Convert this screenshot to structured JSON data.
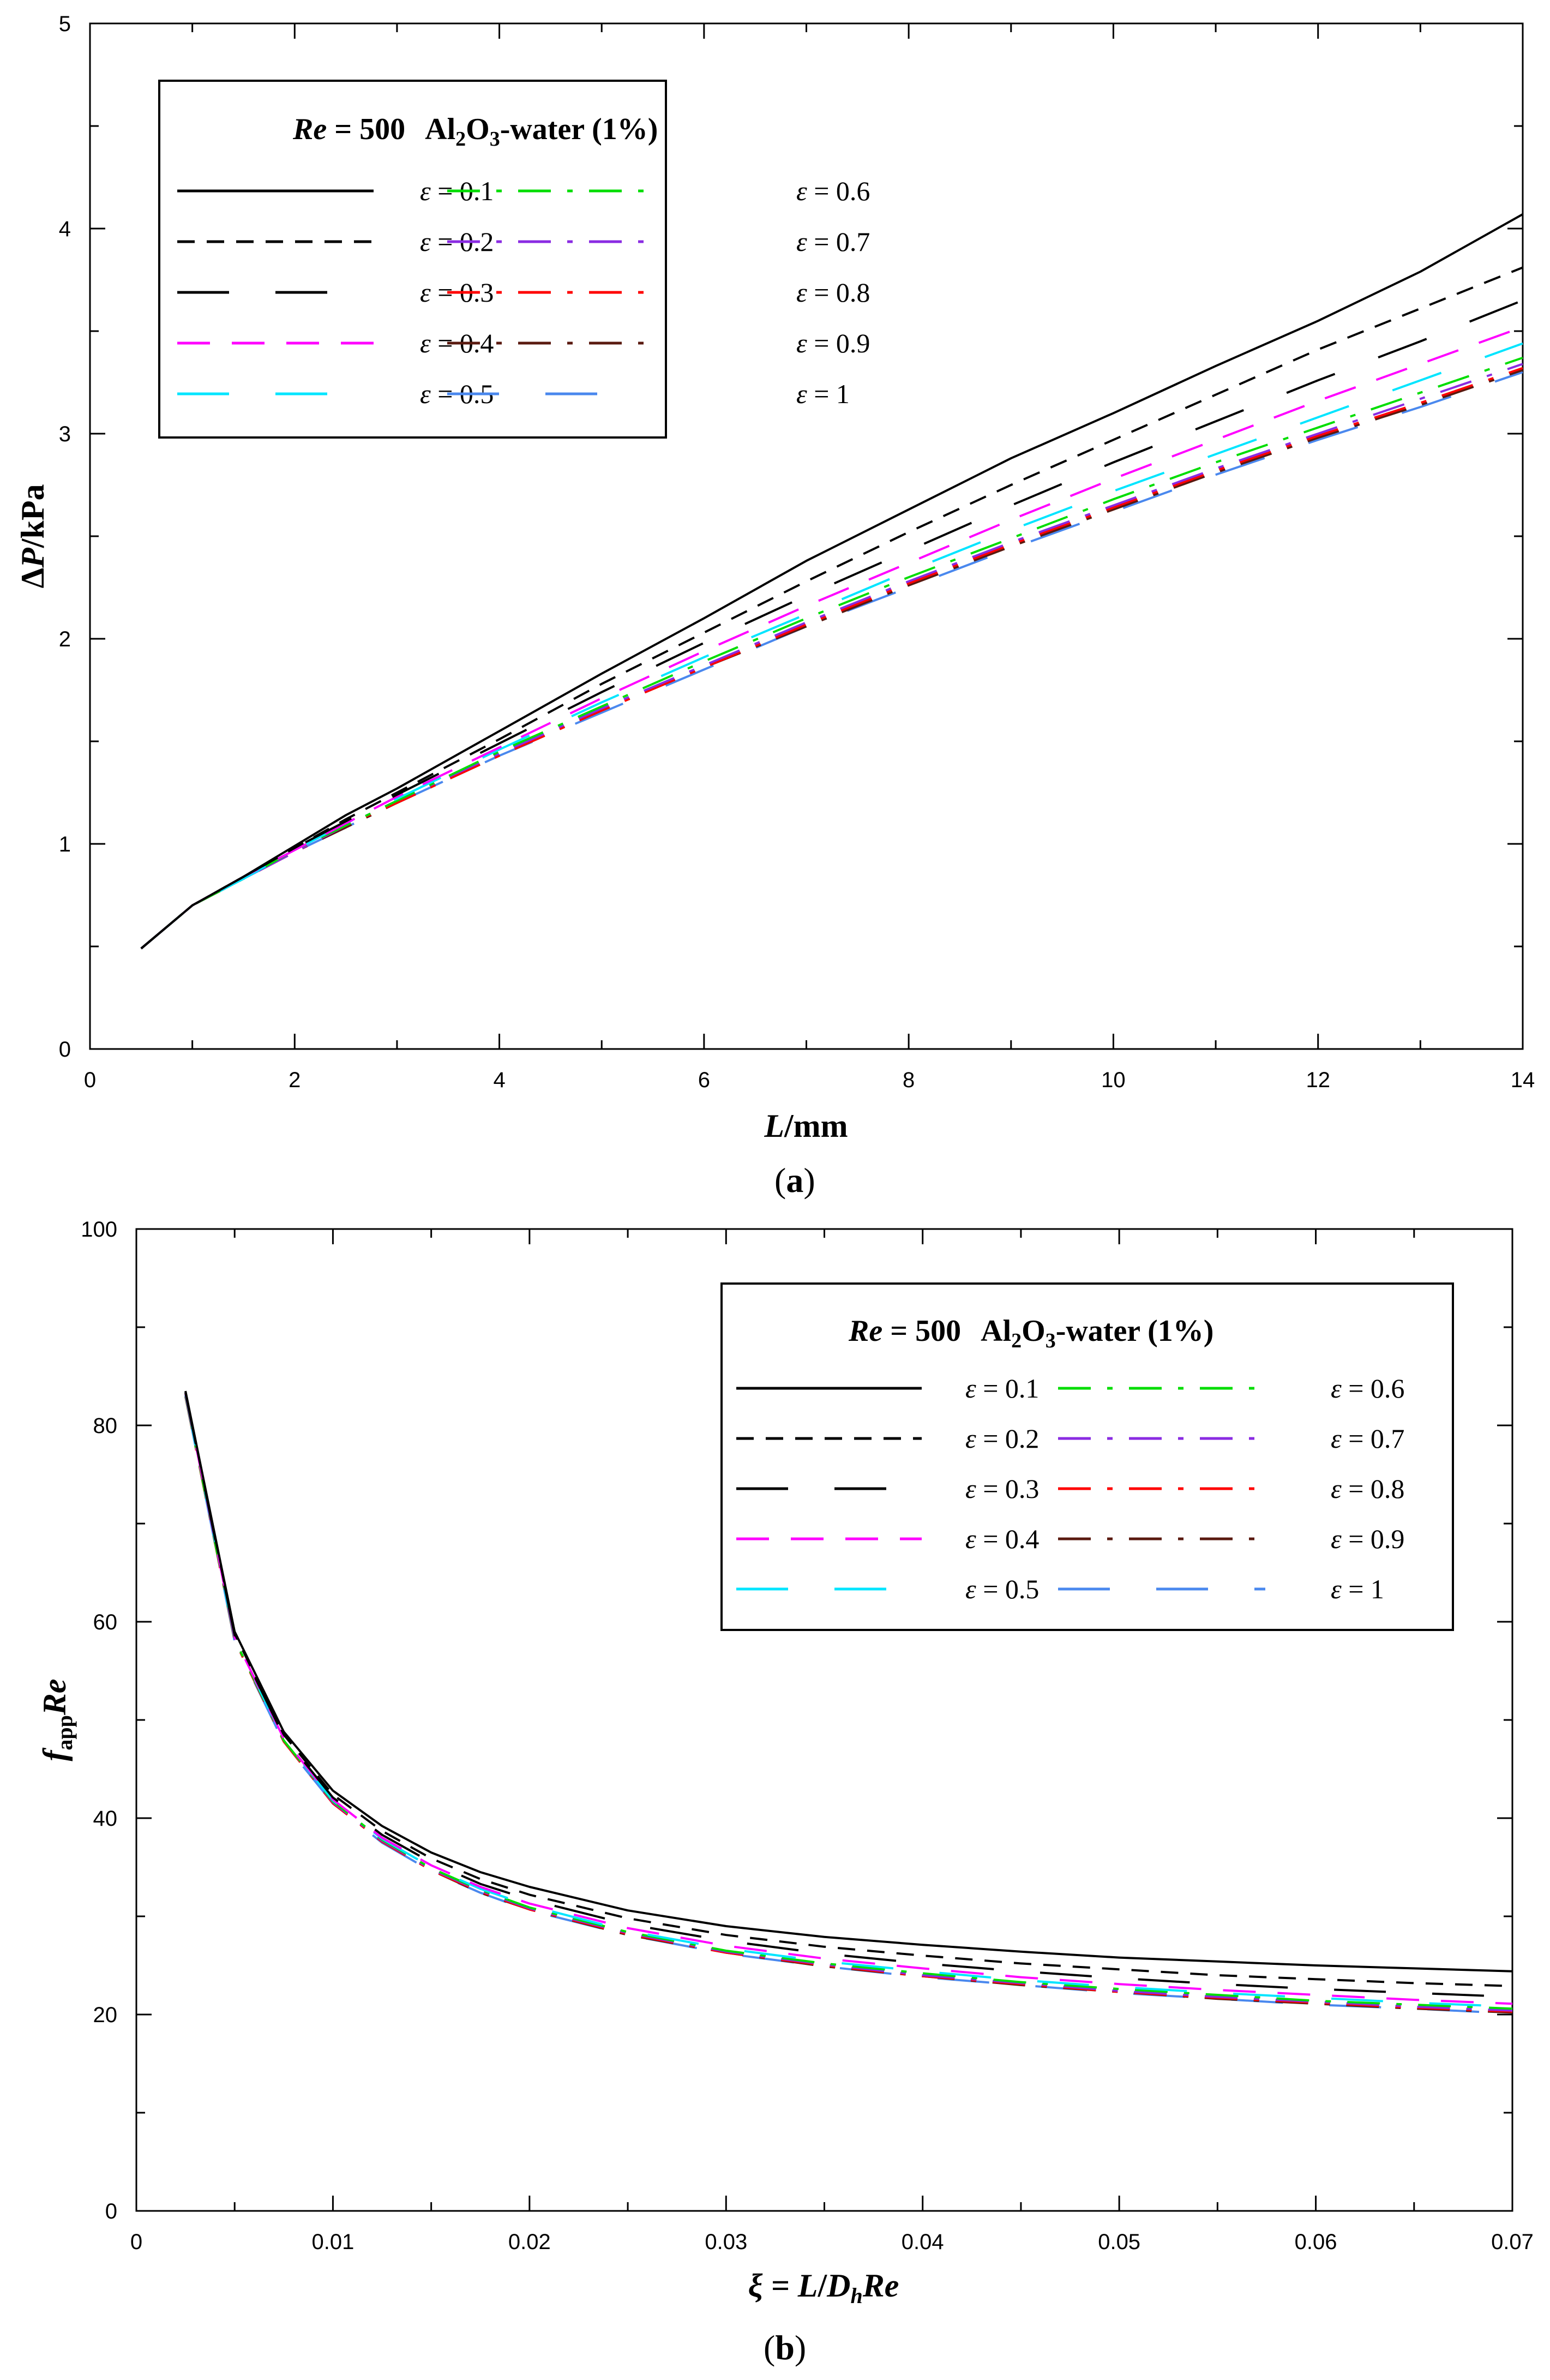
{
  "colors": {
    "e0.1": "#000000",
    "e0.2": "#000000",
    "e0.3": "#000000",
    "e0.4": "#ff00ff",
    "e0.5": "#00e5ff",
    "e0.6": "#00dd00",
    "e0.7": "#8a2be2",
    "e0.8": "#ff0000",
    "e0.9": "#5a1a10",
    "e1": "#4a88ee"
  },
  "chart_data": [
    {
      "panel": "(a)",
      "panel_letter": "a",
      "type": "line",
      "xlabel_var": "L",
      "xlabel_unit": "/mm",
      "ylabel_pre": "Δ",
      "ylabel_var": "P",
      "ylabel_unit": "/kPa",
      "xlim": [
        0,
        14
      ],
      "ylim": [
        0,
        5
      ],
      "xticks": [
        "0",
        "2",
        "4",
        "6",
        "8",
        "10",
        "12",
        "14"
      ],
      "yticks": [
        "0",
        "1",
        "2",
        "3",
        "4",
        "5"
      ],
      "legend": {
        "header_re": "Re",
        "header_eq": " = 500",
        "header_fluid_pre": "Al",
        "header_fluid_sub1": "2",
        "header_fluid_mid": "O",
        "header_fluid_sub2": "3",
        "header_fluid_post": "-water (1%)",
        "placement": "top-left"
      },
      "x": [
        0.5,
        1,
        1.5,
        2,
        2.5,
        3,
        4,
        5,
        6,
        7,
        8,
        9,
        10,
        11,
        12,
        13,
        14
      ],
      "series": [
        {
          "name": "ε = 0.1",
          "key": "e0.1",
          "dash": "solid",
          "values": [
            0.49,
            0.7,
            0.84,
            0.99,
            1.14,
            1.27,
            1.55,
            1.83,
            2.1,
            2.38,
            2.63,
            2.88,
            3.1,
            3.33,
            3.55,
            3.79,
            4.07
          ]
        },
        {
          "name": "ε = 0.2",
          "key": "e0.2",
          "dash": "short",
          "values": [
            0.49,
            0.7,
            0.84,
            0.98,
            1.12,
            1.25,
            1.51,
            1.78,
            2.03,
            2.28,
            2.52,
            2.75,
            2.97,
            3.19,
            3.41,
            3.61,
            3.81
          ]
        },
        {
          "name": "ε = 0.3",
          "key": "e0.3",
          "dash": "long-gap",
          "values": [
            0.49,
            0.7,
            0.84,
            0.98,
            1.11,
            1.24,
            1.49,
            1.74,
            1.98,
            2.21,
            2.43,
            2.65,
            2.86,
            3.06,
            3.26,
            3.45,
            3.65
          ]
        },
        {
          "name": "ε = 0.4",
          "key": "e0.4",
          "dash": "long",
          "values": [
            0.49,
            0.7,
            0.84,
            0.97,
            1.1,
            1.23,
            1.47,
            1.71,
            1.94,
            2.16,
            2.37,
            2.58,
            2.78,
            2.97,
            3.16,
            3.34,
            3.52
          ]
        },
        {
          "name": "ε = 0.5",
          "key": "e0.5",
          "dash": "long-gap",
          "values": [
            0.49,
            0.7,
            0.83,
            0.97,
            1.1,
            1.22,
            1.46,
            1.69,
            1.91,
            2.12,
            2.33,
            2.53,
            2.72,
            2.9,
            3.08,
            3.26,
            3.44
          ]
        },
        {
          "name": "ε = 0.6",
          "key": "e0.6",
          "dash": "dash-dot",
          "values": [
            0.49,
            0.7,
            0.83,
            0.97,
            1.09,
            1.21,
            1.45,
            1.67,
            1.89,
            2.1,
            2.3,
            2.49,
            2.68,
            2.86,
            3.03,
            3.2,
            3.37
          ]
        },
        {
          "name": "ε = 0.7",
          "key": "e0.7",
          "dash": "dash-dot",
          "values": [
            0.49,
            0.7,
            0.83,
            0.96,
            1.09,
            1.21,
            1.44,
            1.66,
            1.87,
            2.08,
            2.28,
            2.47,
            2.65,
            2.83,
            3.0,
            3.17,
            3.34
          ]
        },
        {
          "name": "ε = 0.8",
          "key": "e0.8",
          "dash": "dash-dot",
          "values": [
            0.49,
            0.7,
            0.83,
            0.96,
            1.09,
            1.2,
            1.43,
            1.65,
            1.86,
            2.07,
            2.27,
            2.46,
            2.64,
            2.82,
            2.99,
            3.15,
            3.32
          ]
        },
        {
          "name": "ε = 0.9",
          "key": "e0.9",
          "dash": "dash-dot",
          "values": [
            0.49,
            0.7,
            0.83,
            0.96,
            1.08,
            1.2,
            1.43,
            1.65,
            1.86,
            2.06,
            2.26,
            2.45,
            2.63,
            2.81,
            2.98,
            3.14,
            3.31
          ]
        },
        {
          "name": "ε = 1",
          "key": "e1",
          "dash": "long-gap",
          "values": [
            0.49,
            0.7,
            0.83,
            0.96,
            1.08,
            1.2,
            1.43,
            1.64,
            1.85,
            2.06,
            2.25,
            2.44,
            2.62,
            2.8,
            2.97,
            3.13,
            3.3
          ]
        }
      ]
    },
    {
      "panel": "(b)",
      "panel_letter": "b",
      "type": "line",
      "xlabel_pre": "ξ = ",
      "xlabel_l": "L",
      "xlabel_slash": "/",
      "xlabel_d": "D",
      "xlabel_h": "h",
      "xlabel_re": "Re",
      "ylabel_f": "f",
      "ylabel_sub": "app",
      "ylabel_re": "Re",
      "xlim": [
        0,
        0.07
      ],
      "ylim": [
        0,
        100
      ],
      "xticks": [
        "0",
        "0.01",
        "0.02",
        "0.03",
        "0.04",
        "0.05",
        "0.06",
        "0.07"
      ],
      "yticks": [
        "0",
        "20",
        "40",
        "60",
        "80",
        "100"
      ],
      "legend": {
        "header_re": "Re",
        "header_eq": " = 500",
        "header_fluid_pre": "Al",
        "header_fluid_sub1": "2",
        "header_fluid_mid": "O",
        "header_fluid_sub2": "3",
        "header_fluid_post": "-water (1%)",
        "placement": "top-right"
      },
      "x": [
        0.0025,
        0.005,
        0.0075,
        0.01,
        0.0125,
        0.015,
        0.0175,
        0.02,
        0.025,
        0.03,
        0.035,
        0.04,
        0.045,
        0.05,
        0.055,
        0.06,
        0.065,
        0.07
      ],
      "series": [
        {
          "name": "ε = 0.1",
          "key": "e0.1",
          "dash": "solid",
          "values": [
            83.5,
            59.0,
            48.8,
            42.8,
            39.2,
            36.5,
            34.5,
            33.0,
            30.6,
            29.0,
            27.9,
            27.1,
            26.4,
            25.8,
            25.4,
            25.0,
            24.7,
            24.4
          ]
        },
        {
          "name": "ε = 0.2",
          "key": "e0.2",
          "dash": "short",
          "values": [
            83.4,
            58.8,
            48.5,
            42.4,
            38.7,
            35.9,
            33.8,
            32.2,
            29.8,
            28.1,
            26.9,
            26.0,
            25.2,
            24.6,
            24.0,
            23.6,
            23.2,
            22.9
          ]
        },
        {
          "name": "ε = 0.3",
          "key": "e0.3",
          "dash": "long-gap",
          "values": [
            83.3,
            58.6,
            48.3,
            42.1,
            38.3,
            35.5,
            33.3,
            31.7,
            29.2,
            27.5,
            26.2,
            25.2,
            24.4,
            23.7,
            23.1,
            22.6,
            22.2,
            21.8
          ]
        },
        {
          "name": "ε = 0.4",
          "key": "e0.4",
          "dash": "long",
          "values": [
            83.2,
            58.4,
            48.1,
            41.9,
            38.0,
            35.2,
            33.0,
            31.3,
            28.8,
            27.0,
            25.7,
            24.7,
            23.8,
            23.1,
            22.5,
            22.0,
            21.5,
            21.1
          ]
        },
        {
          "name": "ε = 0.5",
          "key": "e0.5",
          "dash": "long-gap",
          "values": [
            83.1,
            58.3,
            48.0,
            41.8,
            37.9,
            35.0,
            32.8,
            31.1,
            28.5,
            26.7,
            25.4,
            24.4,
            23.5,
            22.8,
            22.2,
            21.7,
            21.2,
            20.8
          ]
        },
        {
          "name": "ε = 0.6",
          "key": "e0.6",
          "dash": "dash-dot",
          "values": [
            83.0,
            58.2,
            47.9,
            41.7,
            37.8,
            34.9,
            32.7,
            30.9,
            28.4,
            26.5,
            25.2,
            24.2,
            23.3,
            22.6,
            22.0,
            21.4,
            21.0,
            20.6
          ]
        },
        {
          "name": "ε = 0.7",
          "key": "e0.7",
          "dash": "dash-dot",
          "values": [
            83.0,
            58.2,
            47.9,
            41.6,
            37.7,
            34.8,
            32.6,
            30.8,
            28.3,
            26.4,
            25.1,
            24.0,
            23.2,
            22.4,
            21.8,
            21.3,
            20.8,
            20.4
          ]
        },
        {
          "name": "ε = 0.8",
          "key": "e0.8",
          "dash": "dash-dot",
          "values": [
            82.9,
            58.1,
            47.8,
            41.5,
            37.6,
            34.7,
            32.5,
            30.7,
            28.2,
            26.3,
            25.0,
            23.9,
            23.1,
            22.3,
            21.7,
            21.2,
            20.7,
            20.3
          ]
        },
        {
          "name": "ε = 0.9",
          "key": "e0.9",
          "dash": "dash-dot",
          "values": [
            82.9,
            58.1,
            47.8,
            41.5,
            37.6,
            34.7,
            32.4,
            30.7,
            28.1,
            26.3,
            24.9,
            23.9,
            23.0,
            22.3,
            21.6,
            21.1,
            20.6,
            20.2
          ]
        },
        {
          "name": "ε = 1",
          "key": "e1",
          "dash": "long-gap",
          "values": [
            82.9,
            58.0,
            47.7,
            41.5,
            37.5,
            34.6,
            32.4,
            30.6,
            28.1,
            26.2,
            24.9,
            23.8,
            23.0,
            22.2,
            21.6,
            21.0,
            20.6,
            20.1
          ]
        }
      ]
    }
  ]
}
